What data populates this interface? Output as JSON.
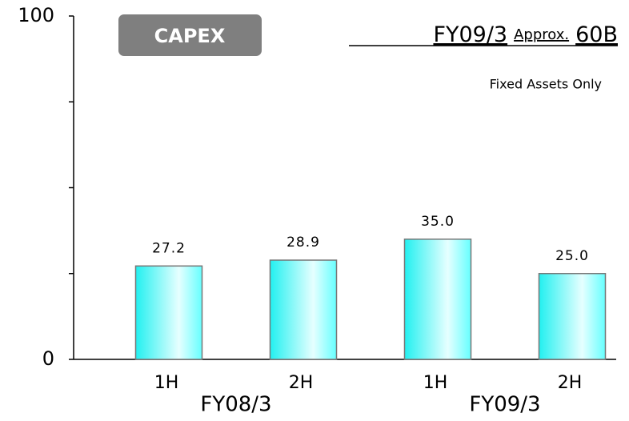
{
  "chart_data": {
    "type": "bar",
    "badge": "CAPEX",
    "headline": {
      "period": "FY09/3",
      "qualifier": "Approx.",
      "amount": "60B"
    },
    "note": "Fixed Assets Only",
    "categories": [
      "1H",
      "2H",
      "1H",
      "2H"
    ],
    "groups": [
      {
        "name": "FY08/3",
        "span": [
          0,
          1
        ]
      },
      {
        "name": "FY09/3",
        "span": [
          2,
          3
        ]
      }
    ],
    "values": [
      27.2,
      28.9,
      35.0,
      25.0
    ],
    "value_labels": [
      "27.2",
      "28.9",
      "35.0",
      "25.0"
    ],
    "color": "#33ffff",
    "ylim": [
      0,
      100
    ],
    "yticks": [
      0,
      100
    ],
    "minor_yticks": [
      25,
      50,
      75
    ]
  }
}
